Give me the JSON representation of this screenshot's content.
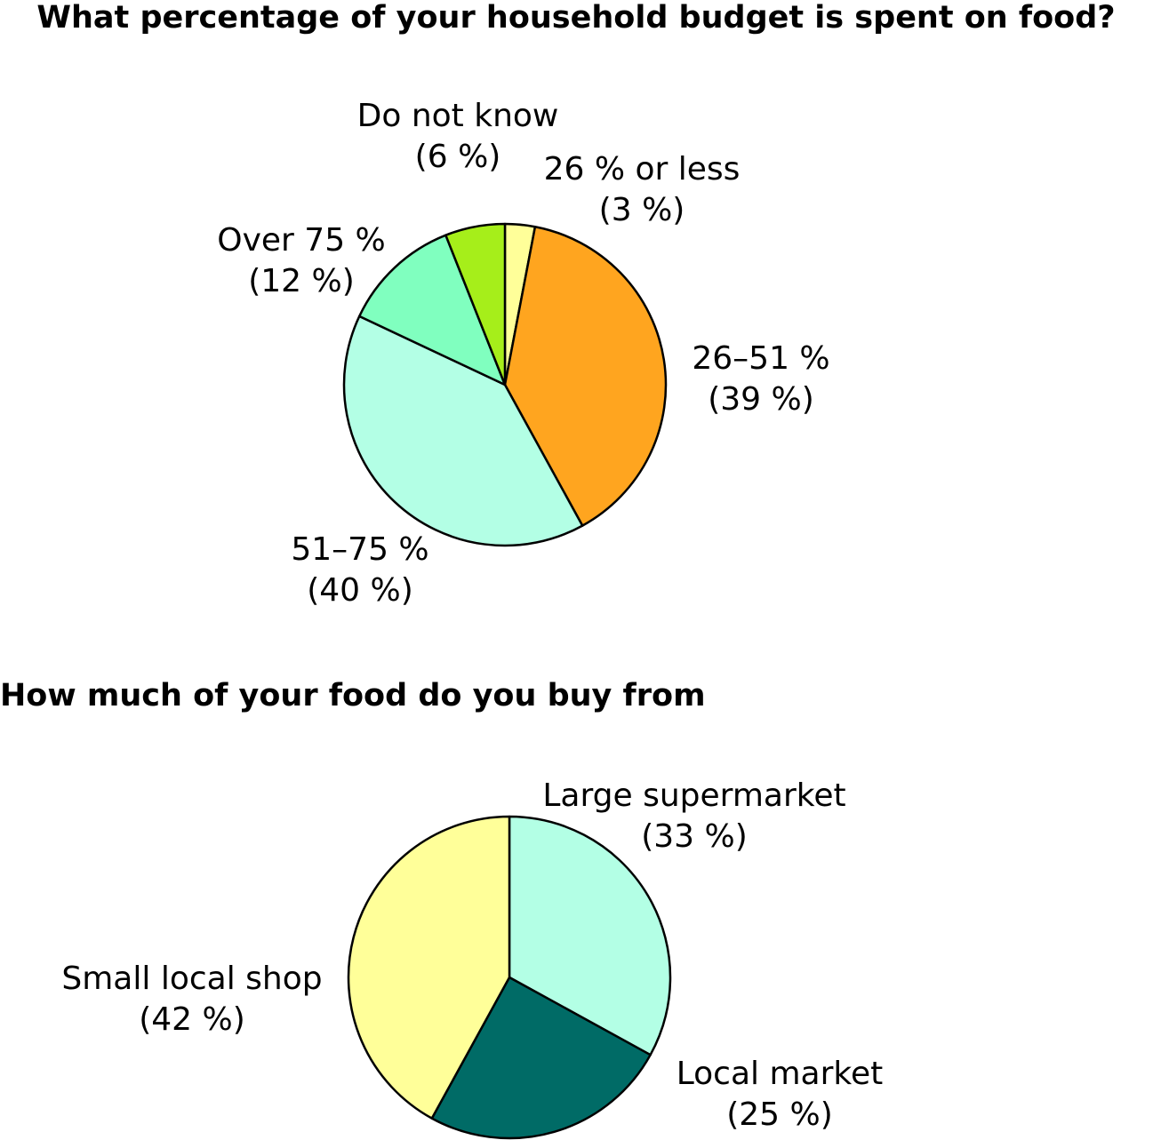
{
  "chart_data": [
    {
      "type": "pie",
      "title": "What percentage of your household budget is spent on food?",
      "start": "12 o'clock",
      "direction": "clockwise",
      "slices": [
        {
          "name": "26 % or less",
          "value": 3,
          "value_label": "(3 %)",
          "color": "#FFFF99"
        },
        {
          "name": "26–51 %",
          "value": 39,
          "value_label": "(39 %)",
          "color": "#FFA51F"
        },
        {
          "name": "51–75 %",
          "value": 40,
          "value_label": "(40 %)",
          "color": "#B3FFE5"
        },
        {
          "name": "Over 75 %",
          "value": 12,
          "value_label": "(12 %)",
          "color": "#80FFBF"
        },
        {
          "name": "Do not know",
          "value": 6,
          "value_label": "(6 %)",
          "color": "#A6EE1A"
        }
      ]
    },
    {
      "type": "pie",
      "title": "How much of your food do you buy from",
      "start": "12 o'clock",
      "direction": "clockwise",
      "slices": [
        {
          "name": "Large supermarket",
          "value": 33,
          "value_label": "(33 %)",
          "color": "#B3FFE5"
        },
        {
          "name": "Local market",
          "value": 25,
          "value_label": "(25 %)",
          "color": "#006B66"
        },
        {
          "name": "Small local shop",
          "value": 42,
          "value_label": "(42 %)",
          "color": "#FFFF99"
        }
      ]
    }
  ]
}
